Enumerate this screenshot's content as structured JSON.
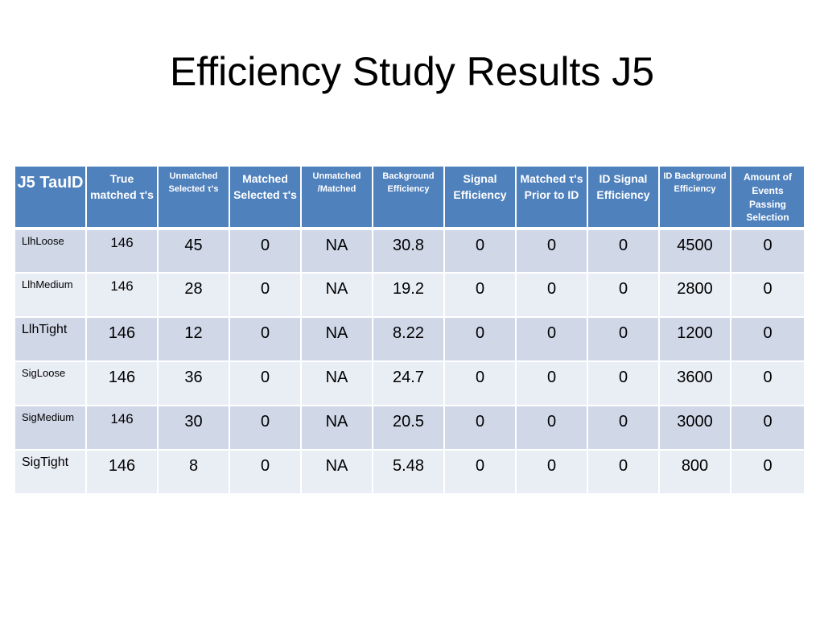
{
  "slide": {
    "title": "Efficiency Study Results J5"
  },
  "table": {
    "headers": [
      "J5 TauID",
      "True matched τ's",
      "Unmatched Selected τ's",
      "Matched Selected τ's",
      "Unmatched /Matched",
      "Background Efficiency",
      "Signal Efficiency",
      "Matched τ's Prior to ID",
      "ID Signal Efficiency",
      "ID Background Efficiency",
      "Amount of Events Passing Selection"
    ],
    "rows": [
      [
        "LlhLoose",
        "146",
        "45",
        "0",
        "NA",
        "30.8",
        "0",
        "0",
        "0",
        "4500",
        "0"
      ],
      [
        "LlhMedium",
        "146",
        "28",
        "0",
        "NA",
        "19.2",
        "0",
        "0",
        "0",
        "2800",
        "0"
      ],
      [
        "LlhTight",
        "146",
        "12",
        "0",
        "NA",
        "8.22",
        "0",
        "0",
        "0",
        "1200",
        "0"
      ],
      [
        "SigLoose",
        "146",
        "36",
        "0",
        "NA",
        "24.7",
        "0",
        "0",
        "0",
        "3600",
        "0"
      ],
      [
        "SigMedium",
        "146",
        "30",
        "0",
        "NA",
        "20.5",
        "0",
        "0",
        "0",
        "3000",
        "0"
      ],
      [
        "SigTight",
        "146",
        "8",
        "0",
        "NA",
        "5.48",
        "0",
        "0",
        "0",
        "800",
        "0"
      ]
    ]
  },
  "colors": {
    "header_bg": "#4f81bd",
    "row_odd_bg": "#d0d8e8",
    "row_even_bg": "#e9edf4"
  }
}
